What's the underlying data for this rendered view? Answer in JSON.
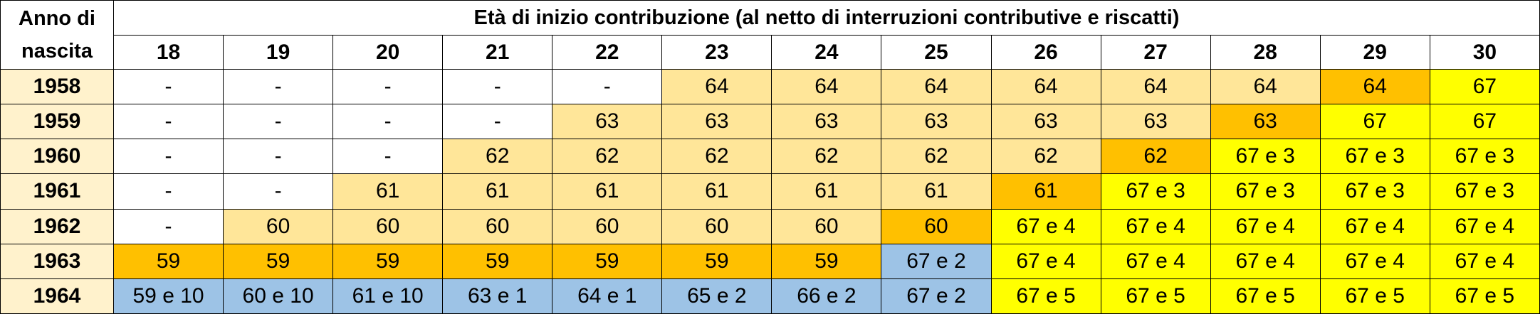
{
  "corner_label": "Anno di nascita",
  "title": "Età di inizio contribuzione (al netto di interruzioni contributive e riscatti)",
  "ages": [
    "18",
    "19",
    "20",
    "21",
    "22",
    "23",
    "24",
    "25",
    "26",
    "27",
    "28",
    "29",
    "30"
  ],
  "colors": {
    "white": "#ffffff",
    "light": "#ffe699",
    "orange": "#ffc000",
    "yellow": "#ffff00",
    "blue": "#9dc3e6",
    "year_column": "#fff2cc"
  },
  "rows": [
    {
      "year": "1958",
      "values": [
        "-",
        "-",
        "-",
        "-",
        "-",
        "64",
        "64",
        "64",
        "64",
        "64",
        "64",
        "64",
        "67"
      ],
      "colors": [
        "white",
        "white",
        "white",
        "white",
        "white",
        "light",
        "light",
        "light",
        "light",
        "light",
        "light",
        "orange",
        "yellow"
      ]
    },
    {
      "year": "1959",
      "values": [
        "-",
        "-",
        "-",
        "-",
        "63",
        "63",
        "63",
        "63",
        "63",
        "63",
        "63",
        "67",
        "67"
      ],
      "colors": [
        "white",
        "white",
        "white",
        "white",
        "light",
        "light",
        "light",
        "light",
        "light",
        "light",
        "orange",
        "yellow",
        "yellow"
      ]
    },
    {
      "year": "1960",
      "values": [
        "-",
        "-",
        "-",
        "62",
        "62",
        "62",
        "62",
        "62",
        "62",
        "62",
        "67 e 3",
        "67 e 3",
        "67 e 3"
      ],
      "colors": [
        "white",
        "white",
        "white",
        "light",
        "light",
        "light",
        "light",
        "light",
        "light",
        "orange",
        "yellow",
        "yellow",
        "yellow"
      ]
    },
    {
      "year": "1961",
      "values": [
        "-",
        "-",
        "61",
        "61",
        "61",
        "61",
        "61",
        "61",
        "61",
        "67 e 3",
        "67 e 3",
        "67 e 3",
        "67 e 3"
      ],
      "colors": [
        "white",
        "white",
        "light",
        "light",
        "light",
        "light",
        "light",
        "light",
        "orange",
        "yellow",
        "yellow",
        "yellow",
        "yellow"
      ]
    },
    {
      "year": "1962",
      "values": [
        "-",
        "60",
        "60",
        "60",
        "60",
        "60",
        "60",
        "60",
        "67 e 4",
        "67 e 4",
        "67 e 4",
        "67 e 4",
        "67 e 4"
      ],
      "colors": [
        "white",
        "light",
        "light",
        "light",
        "light",
        "light",
        "light",
        "orange",
        "yellow",
        "yellow",
        "yellow",
        "yellow",
        "yellow"
      ]
    },
    {
      "year": "1963",
      "values": [
        "59",
        "59",
        "59",
        "59",
        "59",
        "59",
        "59",
        "67 e 2",
        "67 e 4",
        "67 e 4",
        "67 e 4",
        "67 e 4",
        "67 e 4"
      ],
      "colors": [
        "orange",
        "orange",
        "orange",
        "orange",
        "orange",
        "orange",
        "orange",
        "blue",
        "yellow",
        "yellow",
        "yellow",
        "yellow",
        "yellow"
      ]
    },
    {
      "year": "1964",
      "values": [
        "59 e 10",
        "60 e 10",
        "61 e 10",
        "63 e 1",
        "64 e 1",
        "65 e 2",
        "66 e 2",
        "67 e 2",
        "67 e 5",
        "67 e 5",
        "67 e 5",
        "67 e 5",
        "67 e 5"
      ],
      "colors": [
        "blue",
        "blue",
        "blue",
        "blue",
        "blue",
        "blue",
        "blue",
        "blue",
        "yellow",
        "yellow",
        "yellow",
        "yellow",
        "yellow"
      ]
    }
  ]
}
